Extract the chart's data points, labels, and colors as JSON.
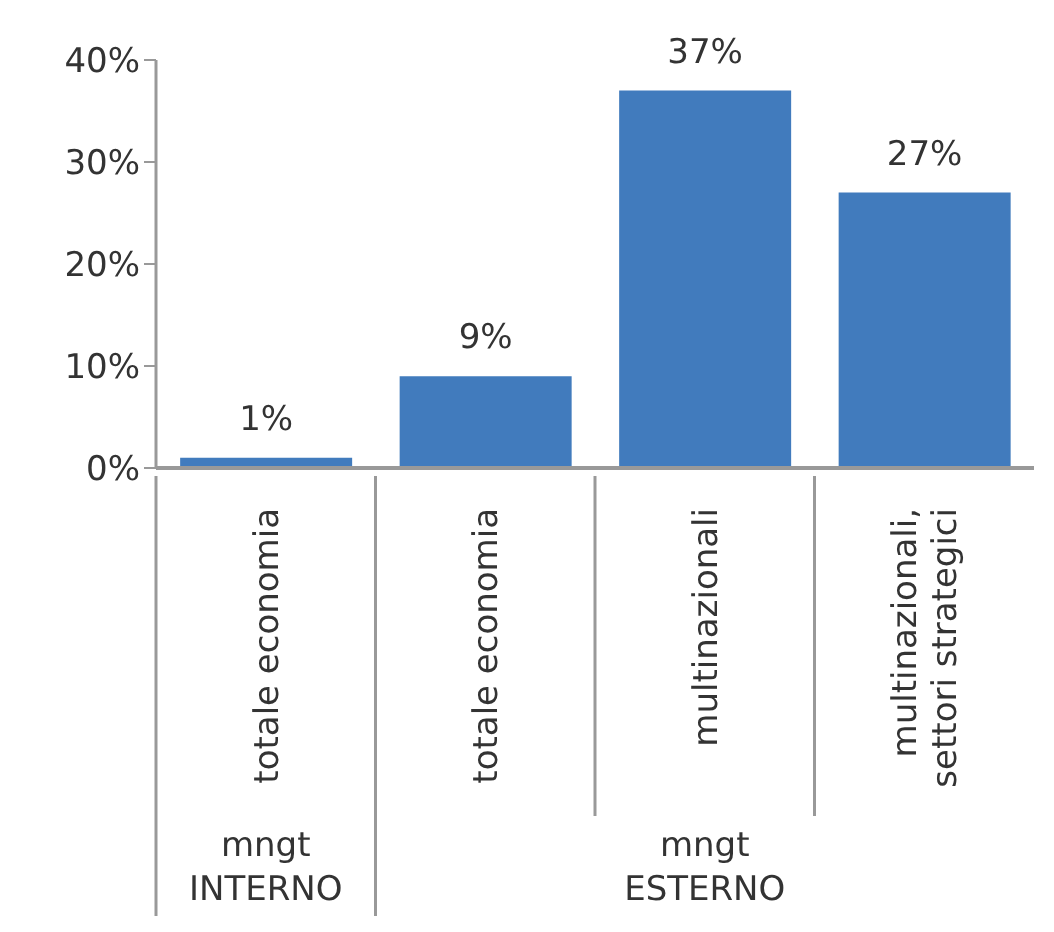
{
  "chart_data": {
    "type": "bar",
    "categories": [
      "totale economia",
      "totale economia",
      "multinazionali",
      "multinazionali, settori strategici"
    ],
    "values": [
      1,
      9,
      37,
      27
    ],
    "value_labels": [
      "1%",
      "9%",
      "37%",
      "27%"
    ],
    "color": "#417bbd",
    "ylim": [
      0,
      40
    ],
    "yticks": [
      {
        "value": 0,
        "label": "0%"
      },
      {
        "value": 10,
        "label": "10%"
      },
      {
        "value": 20,
        "label": "20%"
      },
      {
        "value": 30,
        "label": "30%"
      },
      {
        "value": 40,
        "label": "40%"
      }
    ],
    "grid": false,
    "annotations": [
      "mngt INTERNO",
      "mngt ESTERNO"
    ]
  }
}
